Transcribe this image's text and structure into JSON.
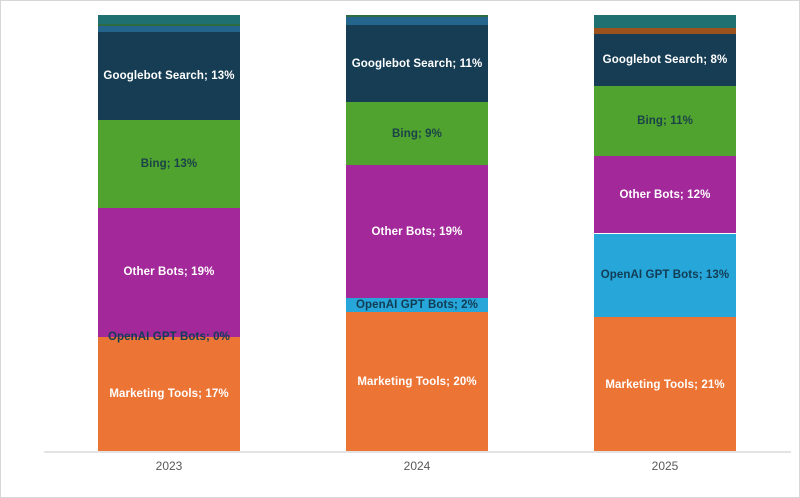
{
  "chart_data": {
    "type": "bar",
    "variant": "stacked-normalized-column",
    "title": "",
    "xlabel": "",
    "ylabel": "",
    "legend": "none",
    "grid": false,
    "categories": [
      "2023",
      "2024",
      "2025"
    ],
    "label_format": "{name}; {value}%",
    "series": [
      {
        "name": "Marketing Tools",
        "color": "#EC7434",
        "label_color": "#FFFFFF",
        "show_label": true,
        "values": [
          17,
          20,
          21
        ]
      },
      {
        "name": "OpenAI GPT Bots",
        "color": "#27A6DA",
        "label_color": "#123C54",
        "show_label": true,
        "values": [
          0,
          2,
          13
        ]
      },
      {
        "name": "Other Bots",
        "color": "#A3299B",
        "label_color": "#FFFFFF",
        "show_label": true,
        "values": [
          19,
          19,
          12
        ]
      },
      {
        "name": "Bing",
        "color": "#4FA32E",
        "label_color": "#1B4248",
        "show_label": true,
        "values": [
          13,
          9,
          11
        ]
      },
      {
        "name": "Googlebot Search",
        "color": "#163D54",
        "label_color": "#FFFFFF",
        "show_label": true,
        "values": [
          13,
          11,
          8
        ]
      },
      {
        "name": "unlabeled-segment-rust",
        "color": "#9C521C",
        "label_color": "#FFFFFF",
        "show_label": false,
        "values": [
          0,
          0,
          1
        ]
      },
      {
        "name": "unlabeled-segment-steel-blue",
        "color": "#23658C",
        "label_color": "#FFFFFF",
        "show_label": false,
        "values": [
          0.9,
          1.2,
          0
        ]
      },
      {
        "name": "unlabeled-segment-dark-green",
        "color": "#2E6B40",
        "label_color": "#FFFFFF",
        "show_label": false,
        "values": [
          0.3,
          0.3,
          0
        ]
      },
      {
        "name": "unlabeled-segment-teal",
        "color": "#1F7070",
        "label_color": "#FFFFFF",
        "show_label": false,
        "values": [
          1.3,
          0,
          2
        ]
      }
    ],
    "axis": {
      "baseline_color": "#E3E3E3",
      "tick_label_color": "#595959"
    }
  }
}
